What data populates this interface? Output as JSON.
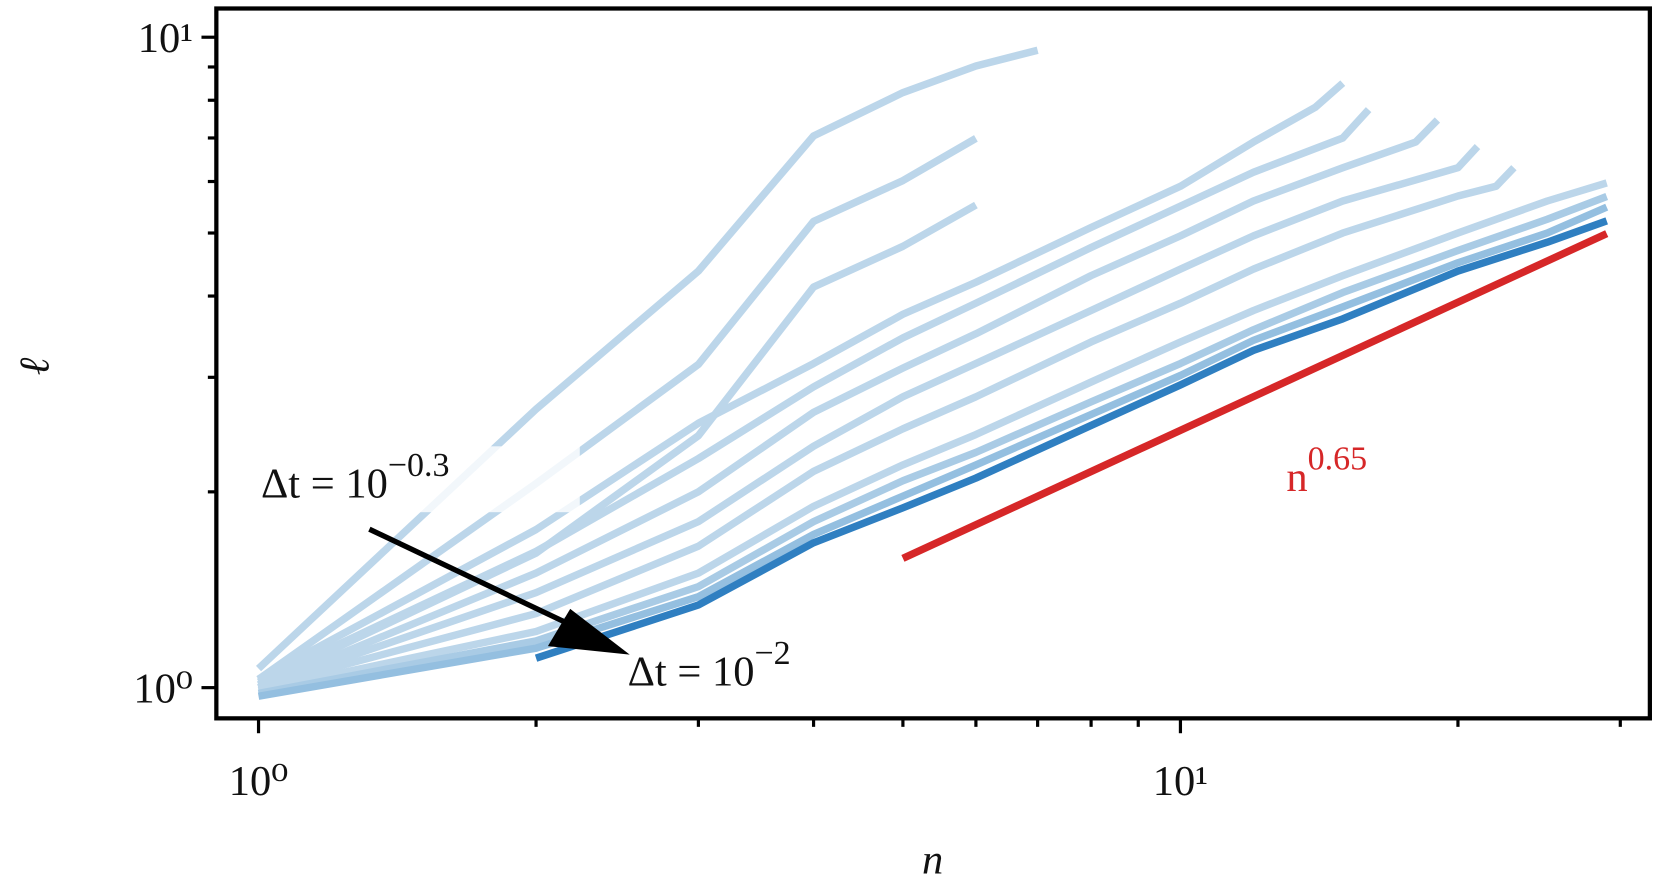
{
  "chart_data": {
    "type": "line",
    "xlabel": "n",
    "ylabel": "ℓ",
    "log_x": true,
    "log_y": true,
    "xlim": [
      0.9,
      32.3
    ],
    "ylim": [
      0.897,
      11.07
    ],
    "xticks": [
      {
        "value": 1,
        "label": "10⁰"
      },
      {
        "value": 10,
        "label": "10¹"
      }
    ],
    "yticks": [
      {
        "value": 1,
        "label": "10⁰"
      },
      {
        "value": 10,
        "label": "10¹"
      }
    ],
    "xminorticks": [
      2,
      3,
      4,
      5,
      6,
      7,
      8,
      9,
      20,
      30
    ],
    "yminorticks": [
      2,
      3,
      4,
      5,
      6,
      7,
      8,
      9
    ],
    "series": [
      {
        "color": "#bcd6ea",
        "x": [
          1,
          2,
          3,
          4,
          5,
          6,
          7
        ],
        "values": [
          1.07,
          2.68,
          4.37,
          7.05,
          8.22,
          9.03,
          9.55
        ]
      },
      {
        "color": "#bcd6ea",
        "x": [
          1,
          2,
          3,
          4,
          5,
          6
        ],
        "values": [
          1.03,
          2.06,
          3.14,
          5.21,
          6.02,
          6.99
        ]
      },
      {
        "color": "#bcd6ea",
        "x": [
          1,
          2,
          3,
          4,
          5,
          6
        ],
        "values": [
          1.01,
          1.61,
          2.44,
          4.13,
          4.77,
          5.52
        ]
      },
      {
        "color": "#bcd6ea",
        "x": [
          1,
          2,
          3,
          4,
          5,
          6,
          8,
          10,
          12,
          14,
          15
        ],
        "values": [
          1.03,
          1.75,
          2.55,
          3.15,
          3.75,
          4.2,
          5.1,
          5.9,
          6.9,
          7.8,
          8.5
        ]
      },
      {
        "color": "#bcd6ea",
        "x": [
          1,
          2,
          3,
          4,
          5,
          6,
          8,
          10,
          12,
          15,
          16
        ],
        "values": [
          1.02,
          1.62,
          2.25,
          2.9,
          3.45,
          3.9,
          4.75,
          5.5,
          6.2,
          7.0,
          7.74
        ]
      },
      {
        "color": "#bcd6ea",
        "x": [
          1,
          2,
          3,
          4,
          5,
          6,
          8,
          10,
          12,
          15,
          18,
          19
        ],
        "values": [
          1.0,
          1.5,
          2.0,
          2.65,
          3.1,
          3.5,
          4.3,
          4.95,
          5.6,
          6.3,
          6.9,
          7.46
        ]
      },
      {
        "color": "#bcd6ea",
        "x": [
          1,
          2,
          3,
          4,
          5,
          6,
          8,
          10,
          12,
          15,
          20,
          21
        ],
        "values": [
          1.0,
          1.4,
          1.8,
          2.35,
          2.8,
          3.15,
          3.8,
          4.4,
          4.95,
          5.6,
          6.3,
          6.79
        ]
      },
      {
        "color": "#bcd6ea",
        "x": [
          1,
          2,
          3,
          4,
          5,
          6,
          8,
          10,
          12,
          15,
          20,
          22,
          23
        ],
        "values": [
          1.0,
          1.3,
          1.65,
          2.15,
          2.5,
          2.8,
          3.4,
          3.9,
          4.4,
          5.0,
          5.7,
          5.9,
          6.3
        ]
      },
      {
        "color": "#bcd6ea",
        "x": [
          1,
          2,
          3,
          4,
          5,
          6,
          8,
          10,
          12,
          15,
          20,
          25,
          29
        ],
        "values": [
          0.99,
          1.22,
          1.5,
          1.9,
          2.2,
          2.45,
          2.95,
          3.4,
          3.8,
          4.3,
          5.0,
          5.6,
          5.97
        ]
      },
      {
        "color": "#a9cbe5",
        "x": [
          1,
          2,
          3,
          4,
          5,
          6,
          8,
          10,
          12,
          15,
          20,
          25,
          29
        ],
        "values": [
          0.98,
          1.18,
          1.43,
          1.8,
          2.08,
          2.3,
          2.75,
          3.15,
          3.55,
          4.05,
          4.7,
          5.25,
          5.69
        ]
      },
      {
        "color": "#94bfe0",
        "x": [
          1,
          2,
          3,
          4,
          5,
          6,
          8,
          10,
          12,
          15,
          20,
          25,
          29
        ],
        "values": [
          0.97,
          1.15,
          1.38,
          1.72,
          1.97,
          2.2,
          2.63,
          3.02,
          3.42,
          3.85,
          4.5,
          5.0,
          5.48
        ]
      },
      {
        "color": "#2f7fc1",
        "x": [
          2,
          3,
          4,
          5,
          6,
          8,
          10,
          12,
          15,
          20,
          25,
          29
        ],
        "values": [
          1.11,
          1.34,
          1.67,
          1.89,
          2.1,
          2.53,
          2.92,
          3.3,
          3.69,
          4.37,
          4.84,
          5.22
        ]
      },
      {
        "color": "#d62728",
        "x": [
          5,
          29
        ],
        "values": [
          1.58,
          4.99
        ]
      }
    ],
    "annotations": [
      {
        "text": "Δt = 10",
        "sup": "−0.3"
      },
      {
        "text": "Δt = 10",
        "sup": "−2"
      },
      {
        "text": "n",
        "sup": "0.65",
        "color": "#d62728"
      }
    ]
  }
}
